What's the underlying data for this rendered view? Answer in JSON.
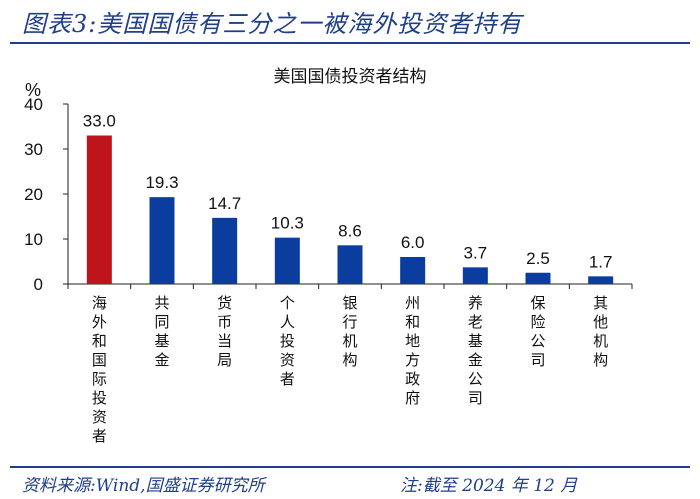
{
  "header": {
    "figure_title": "图表3:美国国债有三分之一被海外投资者持有"
  },
  "footer": {
    "source": "资料来源:Wind,国盛证券研究所",
    "note": "注:截至 2024 年 12 月"
  },
  "colors": {
    "accent": "#1f3f8a",
    "highlight": "#c0141c",
    "bar": "#0a3d9e"
  },
  "chart_data": {
    "type": "bar",
    "title": "美国国债投资者结构",
    "ylabel": "%",
    "ylim": [
      0,
      40
    ],
    "yticks": [
      0,
      10,
      20,
      30,
      40
    ],
    "grid": false,
    "categories": [
      "海外和国际投资者",
      "共同基金",
      "货币当局",
      "个人投资者",
      "银行机构",
      "州和地方政府",
      "养老基金公司",
      "保险公司",
      "其他机构"
    ],
    "values": [
      33.0,
      19.3,
      14.7,
      10.3,
      8.6,
      6.0,
      3.7,
      2.5,
      1.7
    ],
    "value_labels": [
      "33.0",
      "19.3",
      "14.7",
      "10.3",
      "8.6",
      "6.0",
      "3.7",
      "2.5",
      "1.7"
    ],
    "highlight_index": 0
  }
}
